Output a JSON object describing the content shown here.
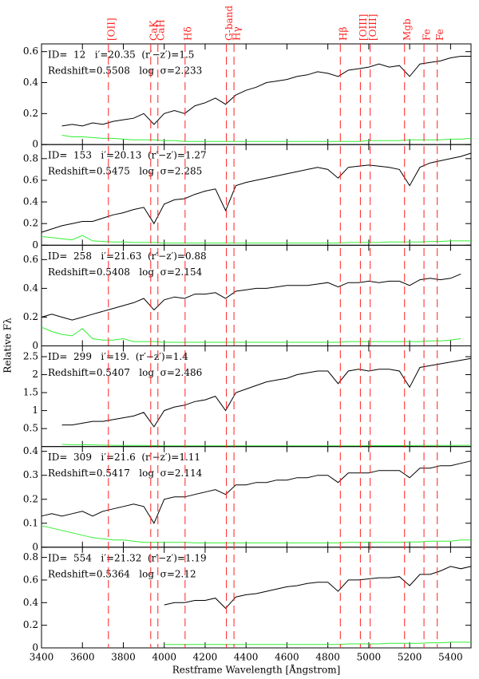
{
  "xlabel": "Restframe Wavelength [Ångstrom]",
  "ylabel": "Relative Fλ",
  "features": [
    {
      "label": "[OII]",
      "x": 3727
    },
    {
      "label": "CaK",
      "x": 3934
    },
    {
      "label": "CaH",
      "x": 3969
    },
    {
      "label": "Hδ",
      "x": 4102
    },
    {
      "label": "G-band",
      "x": 4304
    },
    {
      "label": "Hγ",
      "x": 4341
    },
    {
      "label": "Hβ",
      "x": 4861
    },
    {
      "label": "[OIII]",
      "x": 4959
    },
    {
      "label": "[OIII]",
      "x": 5007
    },
    {
      "label": "Mgb",
      "x": 5175
    },
    {
      "label": "Fe",
      "x": 5270
    },
    {
      "label": "Fe",
      "x": 5335
    }
  ],
  "chart_data": [
    {
      "type": "line",
      "annotations": [
        "ID=  12   i′=20.35  (r′−z′)=1.5",
        "Redshift=0.5508   log  σ=2.233"
      ],
      "x": [
        3400,
        3450,
        3500,
        3550,
        3600,
        3650,
        3700,
        3750,
        3800,
        3850,
        3900,
        3950,
        4000,
        4050,
        4100,
        4150,
        4200,
        4250,
        4300,
        4350,
        4400,
        4450,
        4500,
        4550,
        4600,
        4650,
        4700,
        4750,
        4800,
        4850,
        4900,
        4950,
        5000,
        5050,
        5100,
        5150,
        5200,
        5250,
        5300,
        5350,
        5400,
        5450,
        5500
      ],
      "xlim": [
        3400,
        5500
      ],
      "xticks": [
        3400,
        3600,
        3800,
        4000,
        4200,
        4400,
        4600,
        4800,
        5000,
        5200,
        5400
      ],
      "ylim": [
        0,
        0.65
      ],
      "yticks": [
        0,
        0.2,
        0.4,
        0.6
      ],
      "series": [
        {
          "color": "#000000",
          "values": [
            null,
            null,
            0.12,
            0.13,
            0.12,
            0.14,
            0.13,
            0.15,
            0.16,
            0.17,
            0.2,
            0.13,
            0.2,
            0.22,
            0.2,
            0.25,
            0.27,
            0.3,
            0.26,
            0.32,
            0.35,
            0.37,
            0.4,
            0.41,
            0.42,
            0.44,
            0.45,
            0.47,
            0.46,
            0.44,
            0.48,
            0.49,
            0.5,
            0.52,
            0.5,
            0.51,
            0.44,
            0.52,
            0.53,
            0.54,
            0.56,
            0.57,
            0.57
          ]
        },
        {
          "color": "#33ee33",
          "values": [
            null,
            null,
            0.06,
            0.05,
            0.05,
            0.045,
            0.04,
            0.04,
            0.035,
            0.03,
            0.03,
            0.03,
            0.025,
            0.025,
            0.02,
            0.02,
            0.02,
            0.02,
            0.02,
            0.02,
            0.02,
            0.02,
            0.02,
            0.02,
            0.02,
            0.02,
            0.02,
            0.02,
            0.02,
            0.02,
            0.02,
            0.02,
            0.025,
            0.025,
            0.025,
            0.025,
            0.03,
            0.03,
            0.03,
            0.03,
            0.035,
            0.035,
            0.04
          ]
        }
      ]
    },
    {
      "type": "line",
      "annotations": [
        "ID=  153   i′=20.13  (r′−z′)=1.27",
        "Redshift=0.5475   log  σ=2.285"
      ],
      "x": [
        3400,
        3450,
        3500,
        3550,
        3600,
        3650,
        3700,
        3750,
        3800,
        3850,
        3900,
        3950,
        4000,
        4050,
        4100,
        4150,
        4200,
        4250,
        4300,
        4350,
        4400,
        4450,
        4500,
        4550,
        4600,
        4650,
        4700,
        4750,
        4800,
        4850,
        4900,
        4950,
        5000,
        5050,
        5100,
        5150,
        5200,
        5250,
        5300,
        5350,
        5400,
        5450,
        5500
      ],
      "xlim": [
        3400,
        5500
      ],
      "xticks": [
        3400,
        3600,
        3800,
        4000,
        4200,
        4400,
        4600,
        4800,
        5000,
        5200,
        5400
      ],
      "ylim": [
        0,
        0.93
      ],
      "yticks": [
        0,
        0.2,
        0.4,
        0.6,
        0.8
      ],
      "series": [
        {
          "color": "#000000",
          "values": [
            0.12,
            0.15,
            0.18,
            0.2,
            0.22,
            0.22,
            0.25,
            0.28,
            0.3,
            0.33,
            0.35,
            0.2,
            0.38,
            0.42,
            0.43,
            0.47,
            0.5,
            0.52,
            0.32,
            0.55,
            0.58,
            0.6,
            0.62,
            0.64,
            0.66,
            0.68,
            0.7,
            0.72,
            0.7,
            0.62,
            0.72,
            0.73,
            0.74,
            0.73,
            0.72,
            0.7,
            0.55,
            0.72,
            0.76,
            0.78,
            0.8,
            0.82,
            0.85
          ]
        },
        {
          "color": "#33ee33",
          "values": [
            0.08,
            0.07,
            0.06,
            0.05,
            0.09,
            0.04,
            0.035,
            0.03,
            0.03,
            0.025,
            0.025,
            0.025,
            0.02,
            0.02,
            0.02,
            0.02,
            0.02,
            0.02,
            0.02,
            0.02,
            0.02,
            0.02,
            0.02,
            0.02,
            0.02,
            0.02,
            0.02,
            0.02,
            0.02,
            0.02,
            0.025,
            0.025,
            0.025,
            0.025,
            0.03,
            0.03,
            0.03,
            0.03,
            0.035,
            0.035,
            0.04,
            0.04,
            0.04
          ]
        }
      ]
    },
    {
      "type": "line",
      "annotations": [
        "ID=  258   i′=21.63  (r′−z′)=0.88",
        "Redshift=0.5408   log  σ=2.154"
      ],
      "x": [
        3400,
        3450,
        3500,
        3550,
        3600,
        3650,
        3700,
        3750,
        3800,
        3850,
        3900,
        3950,
        4000,
        4050,
        4100,
        4150,
        4200,
        4250,
        4300,
        4350,
        4400,
        4450,
        4500,
        4550,
        4600,
        4650,
        4700,
        4750,
        4800,
        4850,
        4900,
        4950,
        5000,
        5050,
        5100,
        5150,
        5200,
        5250,
        5300,
        5350,
        5400,
        5450,
        5500
      ],
      "xlim": [
        3400,
        5500
      ],
      "xticks": [
        3400,
        3600,
        3800,
        4000,
        4200,
        4400,
        4600,
        4800,
        5000,
        5200,
        5400
      ],
      "ylim": [
        0,
        0.7
      ],
      "yticks": [
        0,
        0.2,
        0.4,
        0.6
      ],
      "series": [
        {
          "color": "#000000",
          "values": [
            0.2,
            0.22,
            0.2,
            0.18,
            0.2,
            0.22,
            0.24,
            0.26,
            0.28,
            0.3,
            0.33,
            0.25,
            0.32,
            0.34,
            0.33,
            0.36,
            0.36,
            0.37,
            0.33,
            0.38,
            0.39,
            0.4,
            0.4,
            0.41,
            0.42,
            0.42,
            0.42,
            0.43,
            0.44,
            0.41,
            0.44,
            0.44,
            0.45,
            0.44,
            0.45,
            0.45,
            0.42,
            0.46,
            0.47,
            0.46,
            0.47,
            0.5,
            null
          ]
        },
        {
          "color": "#33ee33",
          "values": [
            0.13,
            0.1,
            0.08,
            0.07,
            0.12,
            0.05,
            0.04,
            0.04,
            0.05,
            0.03,
            0.03,
            0.03,
            0.025,
            0.025,
            0.025,
            0.025,
            0.025,
            0.025,
            0.025,
            0.025,
            0.025,
            0.025,
            0.025,
            0.025,
            0.025,
            0.025,
            0.025,
            0.025,
            0.025,
            0.025,
            0.03,
            0.03,
            0.03,
            0.03,
            0.03,
            0.03,
            0.03,
            0.03,
            0.035,
            0.035,
            0.04,
            0.05,
            null
          ]
        }
      ]
    },
    {
      "type": "line",
      "annotations": [
        "ID=  299   i′=19.  (r′−z′)=1.4",
        "Redshift=0.5407   log  σ=2.486"
      ],
      "x": [
        3400,
        3450,
        3500,
        3550,
        3600,
        3650,
        3700,
        3750,
        3800,
        3850,
        3900,
        3950,
        4000,
        4050,
        4100,
        4150,
        4200,
        4250,
        4300,
        4350,
        4400,
        4450,
        4500,
        4550,
        4600,
        4650,
        4700,
        4750,
        4800,
        4850,
        4900,
        4950,
        5000,
        5050,
        5100,
        5150,
        5200,
        5250,
        5300,
        5350,
        5400,
        5450,
        5500
      ],
      "xlim": [
        3400,
        5500
      ],
      "xticks": [
        3400,
        3600,
        3800,
        4000,
        4200,
        4400,
        4600,
        4800,
        5000,
        5200,
        5400
      ],
      "ylim": [
        0,
        2.8
      ],
      "yticks": [
        0.5,
        1,
        1.5,
        2,
        2.5
      ],
      "series": [
        {
          "color": "#000000",
          "values": [
            null,
            null,
            0.6,
            0.6,
            0.65,
            0.7,
            0.7,
            0.75,
            0.8,
            0.85,
            0.95,
            0.55,
            1.0,
            1.1,
            1.15,
            1.25,
            1.3,
            1.4,
            1.0,
            1.5,
            1.6,
            1.7,
            1.8,
            1.85,
            1.9,
            2.0,
            2.05,
            2.1,
            2.1,
            1.75,
            2.1,
            2.15,
            2.1,
            2.15,
            2.15,
            2.1,
            1.65,
            2.2,
            2.25,
            2.3,
            2.35,
            2.4,
            2.45
          ]
        },
        {
          "color": "#33ee33",
          "values": [
            null,
            null,
            0.06,
            0.05,
            0.05,
            0.045,
            0.04,
            0.035,
            0.03,
            0.03,
            0.03,
            0.025,
            0.02,
            0.02,
            0.02,
            0.02,
            0.02,
            0.02,
            0.02,
            0.02,
            0.02,
            0.02,
            0.02,
            0.02,
            0.02,
            0.02,
            0.02,
            0.02,
            0.02,
            0.02,
            0.02,
            0.02,
            0.025,
            0.025,
            0.025,
            0.025,
            0.025,
            0.03,
            0.03,
            0.03,
            0.03,
            0.035,
            0.035
          ]
        }
      ]
    },
    {
      "type": "line",
      "annotations": [
        "ID=  309   i′=21.6  (r′−z′)=1.11",
        "Redshift=0.5417   log  σ=2.114"
      ],
      "x": [
        3400,
        3450,
        3500,
        3550,
        3600,
        3650,
        3700,
        3750,
        3800,
        3850,
        3900,
        3950,
        4000,
        4050,
        4100,
        4150,
        4200,
        4250,
        4300,
        4350,
        4400,
        4450,
        4500,
        4550,
        4600,
        4650,
        4700,
        4750,
        4800,
        4850,
        4900,
        4950,
        5000,
        5050,
        5100,
        5150,
        5200,
        5250,
        5300,
        5350,
        5400,
        5450,
        5500
      ],
      "xlim": [
        3400,
        5500
      ],
      "xticks": [
        3400,
        3600,
        3800,
        4000,
        4200,
        4400,
        4600,
        4800,
        5000,
        5200,
        5400
      ],
      "ylim": [
        0,
        0.42
      ],
      "yticks": [
        0,
        0.1,
        0.2,
        0.3,
        0.4
      ],
      "series": [
        {
          "color": "#000000",
          "values": [
            0.13,
            0.14,
            0.13,
            0.14,
            0.15,
            0.13,
            0.15,
            0.16,
            0.17,
            0.18,
            0.17,
            0.1,
            0.2,
            0.21,
            0.21,
            0.22,
            0.23,
            0.24,
            0.22,
            0.26,
            0.26,
            0.27,
            0.27,
            0.28,
            0.28,
            0.29,
            0.29,
            0.3,
            0.3,
            0.27,
            0.31,
            0.31,
            0.31,
            0.32,
            0.32,
            0.32,
            0.29,
            0.33,
            0.33,
            0.34,
            0.34,
            0.35,
            0.36
          ]
        },
        {
          "color": "#33ee33",
          "values": [
            0.09,
            0.08,
            0.07,
            0.06,
            0.05,
            0.04,
            0.035,
            0.03,
            0.03,
            0.025,
            0.02,
            0.02,
            0.02,
            0.02,
            0.02,
            0.018,
            0.018,
            0.018,
            0.018,
            0.018,
            0.018,
            0.018,
            0.018,
            0.018,
            0.018,
            0.018,
            0.018,
            0.018,
            0.018,
            0.018,
            0.02,
            0.02,
            0.02,
            0.02,
            0.02,
            0.02,
            0.022,
            0.022,
            0.025,
            0.025,
            0.025,
            0.03,
            0.03
          ]
        }
      ]
    },
    {
      "type": "line",
      "annotations": [
        "ID=  554   i′=21.32  (r′−z′)=1.19",
        "Redshift=0.5364   log  σ=2.12"
      ],
      "x": [
        3400,
        3450,
        3500,
        3550,
        3600,
        3650,
        3700,
        3750,
        3800,
        3850,
        3900,
        3950,
        4000,
        4050,
        4100,
        4150,
        4200,
        4250,
        4300,
        4350,
        4400,
        4450,
        4500,
        4550,
        4600,
        4650,
        4700,
        4750,
        4800,
        4850,
        4900,
        4950,
        5000,
        5050,
        5100,
        5150,
        5200,
        5250,
        5300,
        5350,
        5400,
        5450,
        5500
      ],
      "xlim": [
        3400,
        5500
      ],
      "xticks": [
        3400,
        3600,
        3800,
        4000,
        4200,
        4400,
        4600,
        4800,
        5000,
        5200,
        5400
      ],
      "ylim": [
        0,
        0.89
      ],
      "yticks": [
        0,
        0.2,
        0.4,
        0.6,
        0.8
      ],
      "series": [
        {
          "color": "#000000",
          "values": [
            null,
            null,
            null,
            null,
            null,
            null,
            null,
            null,
            null,
            null,
            null,
            null,
            0.38,
            0.4,
            0.4,
            0.42,
            0.42,
            0.44,
            0.35,
            0.45,
            0.47,
            0.48,
            0.5,
            0.52,
            0.54,
            0.55,
            0.57,
            0.58,
            0.58,
            0.5,
            0.6,
            0.6,
            0.61,
            0.62,
            0.62,
            0.63,
            0.55,
            0.65,
            0.65,
            0.68,
            0.72,
            0.7,
            0.72
          ]
        },
        {
          "color": "#33ee33",
          "values": [
            null,
            null,
            null,
            null,
            null,
            null,
            null,
            null,
            null,
            null,
            null,
            null,
            0.03,
            0.03,
            0.03,
            0.03,
            0.03,
            0.03,
            0.03,
            0.03,
            0.03,
            0.03,
            0.03,
            0.03,
            0.03,
            0.03,
            0.03,
            0.03,
            0.03,
            0.03,
            0.035,
            0.035,
            0.035,
            0.035,
            0.04,
            0.04,
            0.04,
            0.04,
            0.045,
            0.045,
            0.05,
            0.05,
            0.05
          ]
        }
      ]
    }
  ]
}
